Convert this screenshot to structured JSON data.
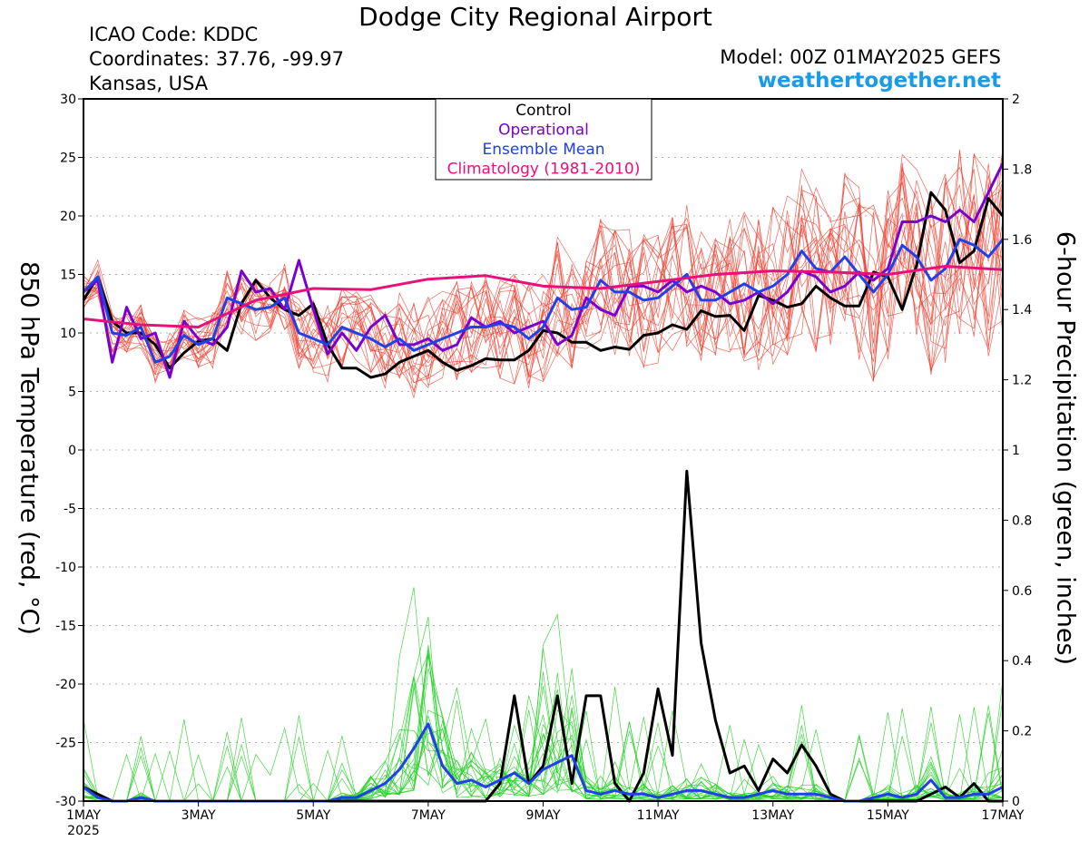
{
  "header": {
    "title": "Dodge City Regional Airport",
    "icao": "ICAO Code: KDDC",
    "coordinates": "Coordinates: 37.76, -99.97",
    "region": "Kansas, USA",
    "model": "Model: 00Z 01MAY2025 GEFS",
    "website": "weathertogether.net"
  },
  "colors": {
    "control": "#000000",
    "operational": "#7a00d0",
    "mean": "#2040e8",
    "climatology": "#e8107a",
    "member_temp": "#f04030",
    "member_precip": "#20d020",
    "website": "#1a9be8"
  },
  "chart_data": {
    "type": "line",
    "title": "Dodge City Regional Airport",
    "xlabel": "",
    "ylabel_left": "850 hPa Temperature (red, °C)",
    "ylabel_right": "6-hour Precipitation (green, inches)",
    "x_unit": "days since 1MAY2025 00Z",
    "xlim": [
      0,
      16
    ],
    "ylim_left": [
      -30,
      30
    ],
    "ylim_right": [
      0,
      2
    ],
    "grid": true,
    "legend_placement": "top-center",
    "legend": [
      "Control",
      "Operational",
      "Ensemble Mean",
      "Climatology (1981-2010)"
    ],
    "x_ticks": [
      {
        "x": 0,
        "label": "1MAY",
        "sub": "2025"
      },
      {
        "x": 2,
        "label": "3MAY",
        "sub": ""
      },
      {
        "x": 4,
        "label": "5MAY",
        "sub": ""
      },
      {
        "x": 6,
        "label": "7MAY",
        "sub": ""
      },
      {
        "x": 8,
        "label": "9MAY",
        "sub": ""
      },
      {
        "x": 10,
        "label": "11MAY",
        "sub": ""
      },
      {
        "x": 12,
        "label": "13MAY",
        "sub": ""
      },
      {
        "x": 14,
        "label": "15MAY",
        "sub": ""
      },
      {
        "x": 16,
        "label": "17MAY",
        "sub": ""
      }
    ],
    "y_ticks_left": [
      "30",
      "25",
      "20",
      "15",
      "10",
      "5",
      "0",
      "-5",
      "-10",
      "-15",
      "-20",
      "-25",
      "-30"
    ],
    "y_ticks_right": [
      "2",
      "1.8",
      "1.6",
      "1.4",
      "1.2",
      "1",
      "0.8",
      "0.6",
      "0.4",
      "0.2",
      "0"
    ],
    "temperature_series": [
      {
        "name": "Control",
        "x": [
          0,
          0.25,
          0.5,
          0.75,
          1,
          1.25,
          1.5,
          1.75,
          2,
          2.25,
          2.5,
          2.75,
          3,
          3.25,
          3.5,
          3.75,
          4,
          4.25,
          4.5,
          4.75,
          5,
          5.25,
          5.5,
          5.75,
          6,
          6.25,
          6.5,
          6.75,
          7,
          7.25,
          7.5,
          7.75,
          8,
          8.25,
          8.5,
          8.75,
          9,
          9.25,
          9.5,
          9.75,
          10,
          10.25,
          10.5,
          10.75,
          11,
          11.25,
          11.5,
          11.75,
          12,
          12.25,
          12.5,
          12.75,
          13,
          13.25,
          13.5,
          13.75,
          14,
          14.25,
          14.5,
          14.75,
          15,
          15.25,
          15.5,
          15.75,
          16
        ],
        "values": [
          12.8,
          14.8,
          11.0,
          10.0,
          10.0,
          9.0,
          7.0,
          8.3,
          9.3,
          9.5,
          8.5,
          12.5,
          14.5,
          13.0,
          12.0,
          11.5,
          12.5,
          9.0,
          7.0,
          7.0,
          6.2,
          6.5,
          7.5,
          8.0,
          8.5,
          7.5,
          6.8,
          7.2,
          7.8,
          7.7,
          7.7,
          8.5,
          10.2,
          10.0,
          9.2,
          9.2,
          8.5,
          8.8,
          8.6,
          9.8,
          10.0,
          10.7,
          10.3,
          11.9,
          11.4,
          11.5,
          10.2,
          13.2,
          12.8,
          12.2,
          12.5,
          14.0,
          13.0,
          12.3,
          12.3,
          15.2,
          14.8,
          12.0,
          15.8,
          22.0,
          20.5,
          16.0,
          17.0,
          21.5,
          20.0
        ]
      },
      {
        "name": "Operational",
        "x": [
          0,
          0.25,
          0.5,
          0.75,
          1,
          1.25,
          1.5,
          1.75,
          2,
          2.25,
          2.5,
          2.75,
          3,
          3.25,
          3.5,
          3.75,
          4,
          4.25,
          4.5,
          4.75,
          5,
          5.25,
          5.5,
          5.75,
          6,
          6.25,
          6.5,
          6.75,
          7,
          7.25,
          7.5,
          7.75,
          8,
          8.25,
          8.5,
          8.75,
          9,
          9.25,
          9.5,
          9.75,
          10,
          10.25,
          10.5,
          10.75,
          11,
          11.25,
          11.5,
          11.75,
          12,
          12.25,
          12.5,
          12.75,
          13,
          13.25,
          13.5,
          13.75,
          14,
          14.25,
          14.5,
          14.75,
          15,
          15.25,
          15.5,
          15.75,
          16
        ],
        "values": [
          13.5,
          14.5,
          7.5,
          12.2,
          9.5,
          10.0,
          6.2,
          11.0,
          9.5,
          9.0,
          10.5,
          15.3,
          13.5,
          13.8,
          12.0,
          16.2,
          12.0,
          8.2,
          10.0,
          8.5,
          10.5,
          11.5,
          9.0,
          9.0,
          9.5,
          8.5,
          9.0,
          11.3,
          10.5,
          11.0,
          10.0,
          10.5,
          11.0,
          9.0,
          9.8,
          13.0,
          12.0,
          11.5,
          14.0,
          14.0,
          13.5,
          14.5,
          13.5,
          14.0,
          13.5,
          12.5,
          12.8,
          13.5,
          12.5,
          13.5,
          15.3,
          14.8,
          13.5,
          14.0,
          15.2,
          14.5,
          15.5,
          19.5,
          19.5,
          20.0,
          19.5,
          20.5,
          19.5,
          22.0,
          24.5
        ]
      },
      {
        "name": "Ensemble Mean",
        "x": [
          0,
          0.25,
          0.5,
          0.75,
          1,
          1.25,
          1.5,
          1.75,
          2,
          2.25,
          2.5,
          2.75,
          3,
          3.25,
          3.5,
          3.75,
          4,
          4.25,
          4.5,
          4.75,
          5,
          5.25,
          5.5,
          5.75,
          6,
          6.25,
          6.5,
          6.75,
          7,
          7.25,
          7.5,
          7.75,
          8,
          8.25,
          8.5,
          8.75,
          9,
          9.25,
          9.5,
          9.75,
          10,
          10.25,
          10.5,
          10.75,
          11,
          11.25,
          11.5,
          11.75,
          12,
          12.25,
          12.5,
          12.75,
          13,
          13.25,
          13.5,
          13.75,
          14,
          14.25,
          14.5,
          14.75,
          15,
          15.25,
          15.5,
          15.75,
          16
        ],
        "values": [
          13.5,
          14.8,
          10.0,
          9.8,
          10.5,
          7.5,
          8.0,
          9.8,
          9.0,
          9.5,
          13.0,
          12.5,
          12.0,
          12.2,
          13.0,
          10.0,
          9.5,
          9.0,
          10.5,
          10.0,
          9.5,
          8.8,
          9.5,
          8.5,
          9.0,
          9.5,
          10.0,
          10.5,
          10.5,
          10.8,
          10.5,
          9.5,
          10.5,
          13.0,
          12.0,
          12.2,
          14.5,
          13.5,
          13.5,
          12.8,
          13.0,
          14.0,
          15.0,
          12.8,
          12.8,
          13.5,
          14.2,
          13.5,
          14.0,
          15.0,
          17.0,
          15.5,
          15.2,
          16.5,
          15.0,
          13.5,
          15.0,
          17.5,
          16.5,
          14.5,
          15.5,
          18.0,
          17.5,
          16.5,
          18.0
        ]
      },
      {
        "name": "Climatology (1981-2010)",
        "x": [
          0,
          1,
          2,
          3,
          4,
          5,
          6,
          7,
          8,
          9,
          10,
          11,
          12,
          13,
          14,
          15,
          16
        ],
        "values": [
          11.2,
          10.7,
          10.5,
          12.8,
          13.8,
          13.7,
          14.6,
          14.9,
          14.0,
          13.8,
          14.4,
          15.0,
          15.3,
          15.2,
          15.0,
          15.7,
          15.4
        ]
      }
    ],
    "precipitation_series": [
      {
        "name": "Control",
        "x": [
          0,
          0.25,
          0.5,
          0.75,
          1,
          1.25,
          1.5,
          1.75,
          2,
          2.25,
          2.5,
          2.75,
          3,
          3.25,
          3.5,
          3.75,
          4,
          4.25,
          4.5,
          4.75,
          5,
          5.25,
          5.5,
          5.75,
          6,
          6.25,
          6.5,
          6.75,
          7,
          7.25,
          7.5,
          7.75,
          8,
          8.25,
          8.5,
          8.75,
          9,
          9.25,
          9.5,
          9.75,
          10,
          10.25,
          10.5,
          10.75,
          11,
          11.25,
          11.5,
          11.75,
          12,
          12.25,
          12.5,
          12.75,
          13,
          13.25,
          13.5,
          13.75,
          14,
          14.25,
          14.5,
          14.75,
          15,
          15.25,
          15.5,
          15.75,
          16
        ],
        "values": [
          0.04,
          0.02,
          0.0,
          0.0,
          0.01,
          0.0,
          0.0,
          0.0,
          0.0,
          0.0,
          0.0,
          0.0,
          0.0,
          0.0,
          0.0,
          0.0,
          0.0,
          0.0,
          0.0,
          0.0,
          0.0,
          0.0,
          0.0,
          0.0,
          0.0,
          0.0,
          0.0,
          0.0,
          0.0,
          0.05,
          0.3,
          0.05,
          0.1,
          0.3,
          0.05,
          0.3,
          0.3,
          0.05,
          0.0,
          0.08,
          0.32,
          0.13,
          0.94,
          0.45,
          0.23,
          0.08,
          0.1,
          0.03,
          0.12,
          0.08,
          0.16,
          0.1,
          0.02,
          0.0,
          0.0,
          0.0,
          0.0,
          0.0,
          0.0,
          0.02,
          0.04,
          0.01,
          0.05,
          0.0,
          0.0
        ]
      },
      {
        "name": "Ensemble Mean",
        "x": [
          0,
          0.25,
          0.5,
          0.75,
          1,
          1.25,
          1.5,
          1.75,
          2,
          2.25,
          2.5,
          2.75,
          3,
          3.25,
          3.5,
          3.75,
          4,
          4.25,
          4.5,
          4.75,
          5,
          5.25,
          5.5,
          5.75,
          6,
          6.25,
          6.5,
          6.75,
          7,
          7.25,
          7.5,
          7.75,
          8,
          8.25,
          8.5,
          8.75,
          9,
          9.25,
          9.5,
          9.75,
          10,
          10.25,
          10.5,
          10.75,
          11,
          11.25,
          11.5,
          11.75,
          12,
          12.25,
          12.5,
          12.75,
          13,
          13.25,
          13.5,
          13.75,
          14,
          14.25,
          14.5,
          14.75,
          15,
          15.25,
          15.5,
          15.75,
          16
        ],
        "values": [
          0.04,
          0.01,
          0.0,
          0.0,
          0.01,
          0.0,
          0.0,
          0.0,
          0.0,
          0.0,
          0.0,
          0.0,
          0.0,
          0.0,
          0.0,
          0.0,
          0.0,
          0.0,
          0.01,
          0.01,
          0.03,
          0.05,
          0.09,
          0.15,
          0.22,
          0.1,
          0.05,
          0.06,
          0.04,
          0.06,
          0.08,
          0.05,
          0.09,
          0.11,
          0.13,
          0.03,
          0.02,
          0.03,
          0.02,
          0.02,
          0.01,
          0.02,
          0.03,
          0.03,
          0.02,
          0.01,
          0.01,
          0.02,
          0.03,
          0.02,
          0.02,
          0.02,
          0.01,
          0.0,
          0.0,
          0.01,
          0.02,
          0.01,
          0.02,
          0.06,
          0.01,
          0.01,
          0.02,
          0.02,
          0.04
        ]
      }
    ]
  }
}
